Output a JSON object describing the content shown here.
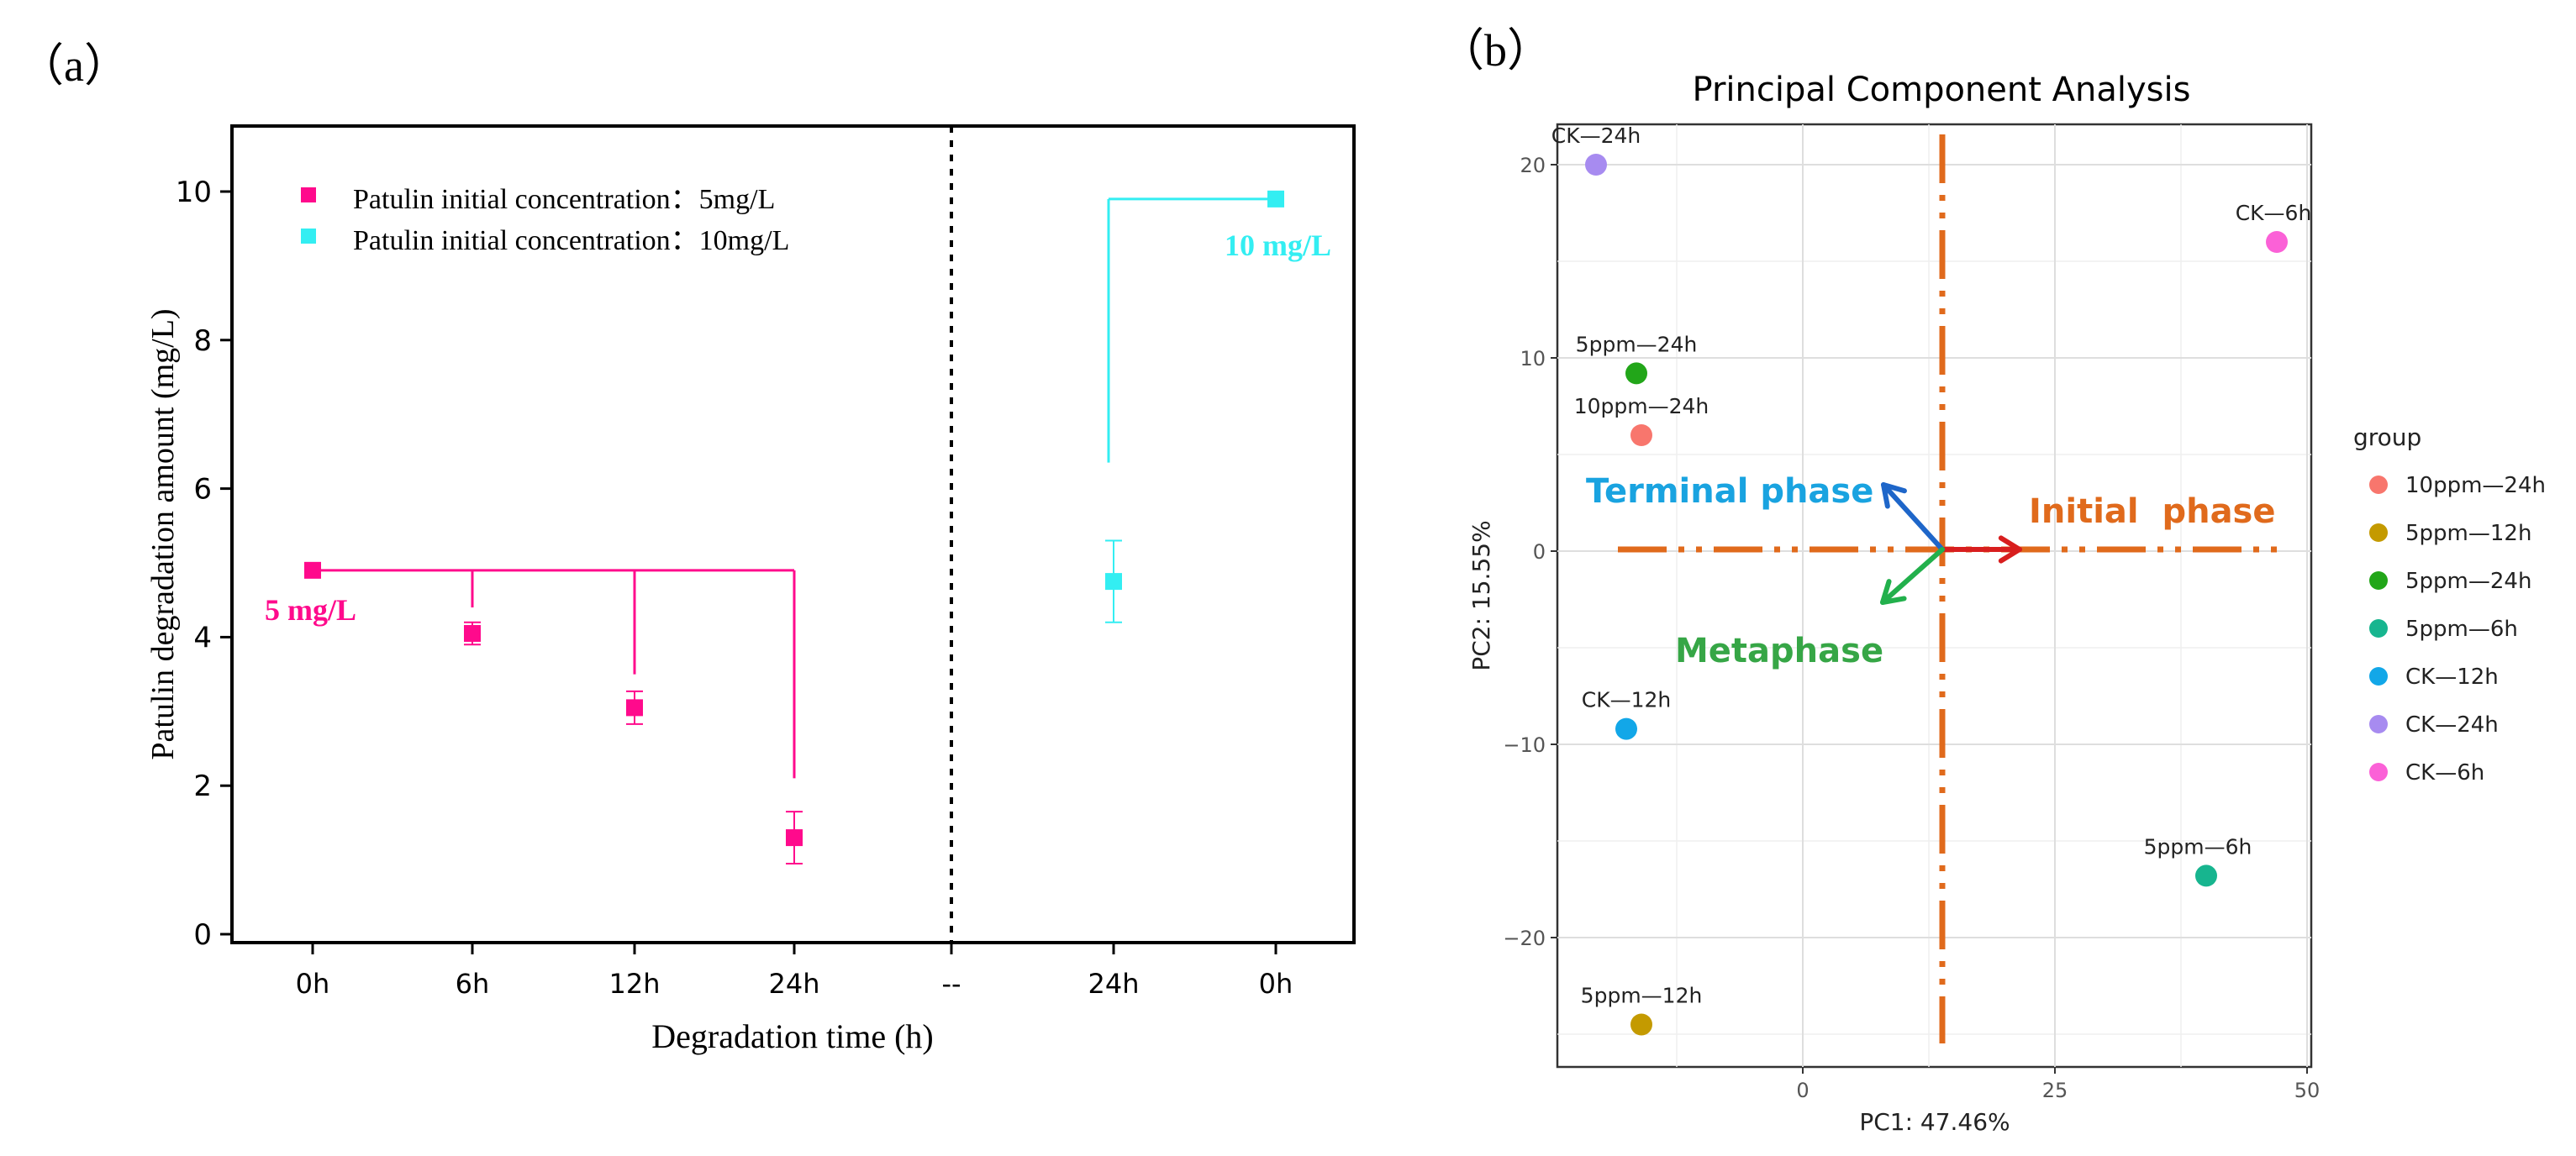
{
  "panel_a": {
    "label": "（a）",
    "chart_data": {
      "type": "scatter",
      "xlabel": "Degradation time (h)",
      "ylabel": "Patulin degradation amount (mg/L)",
      "categories": [
        "0h",
        "6h",
        "12h",
        "24h",
        "--",
        "24h",
        "0h"
      ],
      "yticks": [
        "0",
        "2",
        "4",
        "6",
        "8",
        "10"
      ],
      "ylim": [
        0,
        10.5
      ],
      "grid": false,
      "legend_position": "top-left",
      "series": [
        {
          "name": "Patulin initial concentration：5mg/L",
          "color": "#FF0A8C",
          "points": [
            {
              "x": "0h",
              "y": 4.9,
              "err": 0.05
            },
            {
              "x": "6h",
              "y": 4.05,
              "err": 0.15
            },
            {
              "x": "12h",
              "y": 3.05,
              "err": 0.22
            },
            {
              "x": "24h",
              "y": 1.3,
              "err": 0.35
            }
          ]
        },
        {
          "name": "Patulin initial concentration：10mg/L",
          "color": "#33EEF2",
          "points": [
            {
              "x": "24h",
              "y": 4.75,
              "err": 0.55
            },
            {
              "x": "0h",
              "y": 9.9,
              "err": 0.1
            }
          ]
        }
      ],
      "annotations": [
        {
          "text": "5 mg/L",
          "color": "#FF0A8C"
        },
        {
          "text": "10 mg/L",
          "color": "#33EEF2"
        }
      ]
    }
  },
  "panel_b": {
    "label": "（b）",
    "chart_data": {
      "type": "scatter",
      "title": "Principal Component Analysis",
      "xlabel": "PC1: 47.46%",
      "ylabel": "PC2: 15.55%",
      "xticks": [
        "0",
        "25",
        "50"
      ],
      "yticks": [
        "20",
        "10",
        "0",
        "−10",
        "−20"
      ],
      "xlim": [
        -24,
        50
      ],
      "ylim": [
        -26,
        22
      ],
      "grid": true,
      "legend_position": "right",
      "legend_title": "group",
      "points": [
        {
          "label": "CK—24h",
          "group": "CK—24h",
          "x": -20.5,
          "y": 20.0
        },
        {
          "label": "CK—6h",
          "group": "CK—6h",
          "x": 47.0,
          "y": 16.0
        },
        {
          "label": "5ppm—24h",
          "group": "5ppm—24h",
          "x": -16.5,
          "y": 9.2
        },
        {
          "label": "10ppm—24h",
          "group": "10ppm—24h",
          "x": -16.0,
          "y": 6.0
        },
        {
          "label": "CK—12h",
          "group": "CK—12h",
          "x": -17.5,
          "y": -9.2
        },
        {
          "label": "5ppm—6h",
          "group": "5ppm—6h",
          "x": 40.0,
          "y": -16.8
        },
        {
          "label": "5ppm—12h",
          "group": "5ppm—12h",
          "x": -16.0,
          "y": -24.5
        }
      ],
      "legend": [
        {
          "name": "10ppm—24h",
          "color": "#F8766D"
        },
        {
          "name": "5ppm—12h",
          "color": "#C49A00"
        },
        {
          "name": "5ppm—24h",
          "color": "#22A619"
        },
        {
          "name": "5ppm—6h",
          "color": "#17B58F"
        },
        {
          "name": "CK—12h",
          "color": "#12A7E8"
        },
        {
          "name": "CK—24h",
          "color": "#A78BF0"
        },
        {
          "name": "CK—6h",
          "color": "#FB61D7"
        }
      ],
      "phases": {
        "initial": {
          "text": "Initial  phase",
          "color": "#E06A1C"
        },
        "terminal": {
          "text": "Terminal phase",
          "color": "#19A3E0"
        },
        "metaphase": {
          "text": "Metaphase",
          "color": "#36A646"
        }
      }
    }
  }
}
